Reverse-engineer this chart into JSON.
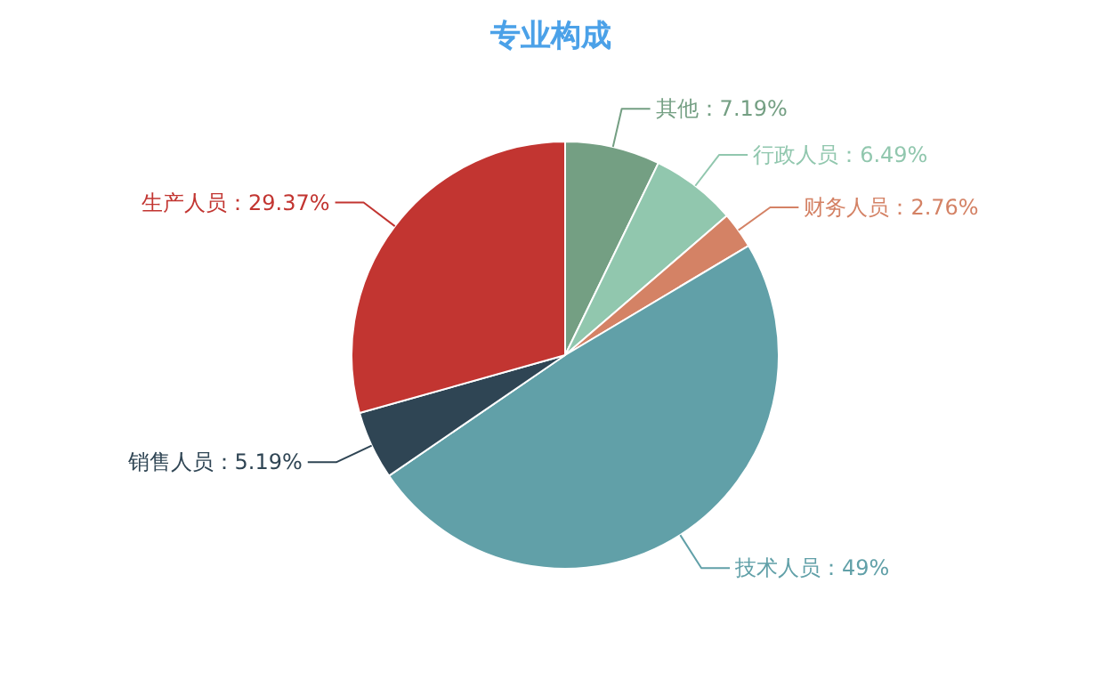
{
  "chart_data": {
    "type": "pie",
    "title": "专业构成",
    "categories": [
      "其他",
      "行政人员",
      "财务人员",
      "技术人员",
      "销售人员",
      "生产人员"
    ],
    "values": [
      7.19,
      6.49,
      2.76,
      49,
      5.19,
      29.37
    ],
    "colors": [
      "#749f83",
      "#91c7ae",
      "#d48265",
      "#61a0a8",
      "#2f4554",
      "#c23531"
    ],
    "value_labels": [
      "7.19%",
      "6.49%",
      "2.76%",
      "49%",
      "5.19%",
      "29.37%"
    ]
  }
}
